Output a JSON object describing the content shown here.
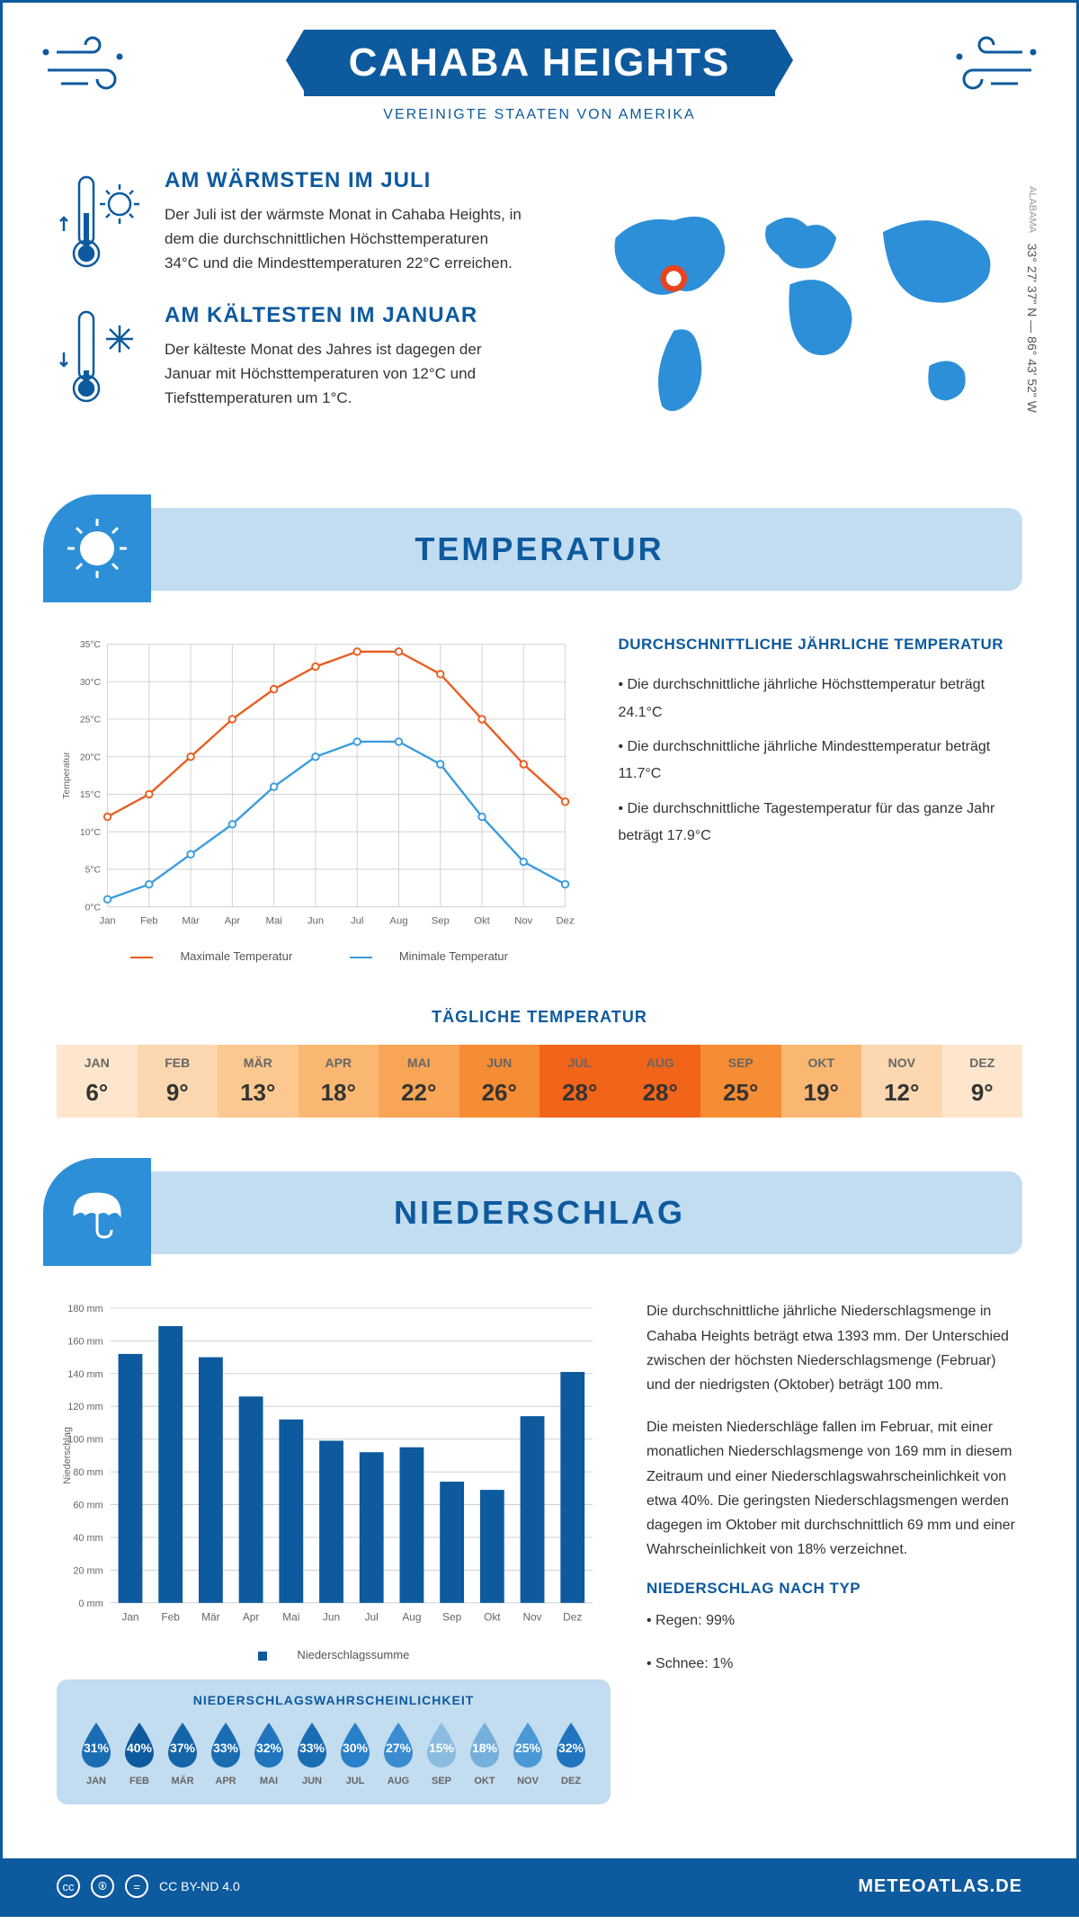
{
  "header": {
    "title": "CAHABA HEIGHTS",
    "subtitle": "VEREINIGTE STAATEN VON AMERIKA"
  },
  "coords": "33° 27' 37\" N — 86° 43' 52\" W",
  "region": "ALABAMA",
  "warmest": {
    "title": "AM WÄRMSTEN IM JULI",
    "text": "Der Juli ist der wärmste Monat in Cahaba Heights, in dem die durchschnittlichen Höchsttemperaturen 34°C und die Mindesttemperaturen 22°C erreichen."
  },
  "coldest": {
    "title": "AM KÄLTESTEN IM JANUAR",
    "text": "Der kälteste Monat des Jahres ist dagegen der Januar mit Höchsttemperaturen von 12°C und Tiefsttemperaturen um 1°C."
  },
  "temp_section": {
    "title": "TEMPERATUR",
    "stats_title": "DURCHSCHNITTLICHE JÄHRLICHE TEMPERATUR",
    "stat1": "• Die durchschnittliche jährliche Höchsttemperatur beträgt 24.1°C",
    "stat2": "• Die durchschnittliche jährliche Mindesttemperatur beträgt 11.7°C",
    "stat3": "• Die durchschnittliche Tagestemperatur für das ganze Jahr beträgt 17.9°C",
    "daily_title": "TÄGLICHE TEMPERATUR",
    "legend_max": "Maximale Temperatur",
    "legend_min": "Minimale Temperatur"
  },
  "temp_chart": {
    "months": [
      "Jan",
      "Feb",
      "Mär",
      "Apr",
      "Mai",
      "Jun",
      "Jul",
      "Aug",
      "Sep",
      "Okt",
      "Nov",
      "Dez"
    ],
    "max_values": [
      12,
      15,
      20,
      25,
      29,
      32,
      34,
      34,
      31,
      25,
      19,
      14
    ],
    "min_values": [
      1,
      3,
      7,
      11,
      16,
      20,
      22,
      22,
      19,
      12,
      6,
      3
    ],
    "max_color": "#e85d1f",
    "min_color": "#3a9bdc",
    "ylabel": "Temperatur",
    "ylim": [
      0,
      35
    ],
    "ytick_step": 5,
    "grid_color": "#d0d0d0"
  },
  "daily_temp": {
    "months": [
      "JAN",
      "FEB",
      "MÄR",
      "APR",
      "MAI",
      "JUN",
      "JUL",
      "AUG",
      "SEP",
      "OKT",
      "NOV",
      "DEZ"
    ],
    "values": [
      "6°",
      "9°",
      "13°",
      "18°",
      "22°",
      "26°",
      "28°",
      "28°",
      "25°",
      "19°",
      "12°",
      "9°"
    ],
    "colors": [
      "#fde6cc",
      "#fcd7af",
      "#fbc88f",
      "#fab772",
      "#f8a556",
      "#f68c33",
      "#f26419",
      "#f26419",
      "#f68c33",
      "#fab772",
      "#fcd7af",
      "#fde6cc"
    ]
  },
  "precip_section": {
    "title": "NIEDERSCHLAG",
    "para1": "Die durchschnittliche jährliche Niederschlagsmenge in Cahaba Heights beträgt etwa 1393 mm. Der Unterschied zwischen der höchsten Niederschlagsmenge (Februar) und der niedrigsten (Oktober) beträgt 100 mm.",
    "para2": "Die meisten Niederschläge fallen im Februar, mit einer monatlichen Niederschlagsmenge von 169 mm in diesem Zeitraum und einer Niederschlagswahrscheinlichkeit von etwa 40%. Die geringsten Niederschlagsmengen werden dagegen im Oktober mit durchschnittlich 69 mm und einer Wahrscheinlichkeit von 18% verzeichnet.",
    "type_title": "NIEDERSCHLAG NACH TYP",
    "type1": "• Regen: 99%",
    "type2": "• Schnee: 1%",
    "legend": "Niederschlagssumme",
    "prob_title": "NIEDERSCHLAGSWAHRSCHEINLICHKEIT"
  },
  "precip_chart": {
    "months": [
      "Jan",
      "Feb",
      "Mär",
      "Apr",
      "Mai",
      "Jun",
      "Jul",
      "Aug",
      "Sep",
      "Okt",
      "Nov",
      "Dez"
    ],
    "values": [
      152,
      169,
      150,
      126,
      112,
      99,
      92,
      95,
      74,
      69,
      114,
      141
    ],
    "bar_color": "#0d5a9e",
    "ylabel": "Niederschlag",
    "ylim": [
      0,
      180
    ],
    "ytick_step": 20,
    "grid_color": "#d0d0d0"
  },
  "prob": {
    "months": [
      "JAN",
      "FEB",
      "MÄR",
      "APR",
      "MAI",
      "JUN",
      "JUL",
      "AUG",
      "SEP",
      "OKT",
      "NOV",
      "DEZ"
    ],
    "values": [
      "31%",
      "40%",
      "37%",
      "33%",
      "32%",
      "33%",
      "30%",
      "27%",
      "15%",
      "18%",
      "25%",
      "32%"
    ],
    "colors": [
      "#1b6db3",
      "#0d5a9e",
      "#1564a8",
      "#1b6db3",
      "#2075be",
      "#1b6db3",
      "#2880c8",
      "#3a8bd0",
      "#8bbce0",
      "#76afd9",
      "#4a98d6",
      "#2075be"
    ]
  },
  "footer": {
    "license": "CC BY-ND 4.0",
    "site": "METEOATLAS.DE"
  },
  "icon_stroke": "#0d5a9e"
}
